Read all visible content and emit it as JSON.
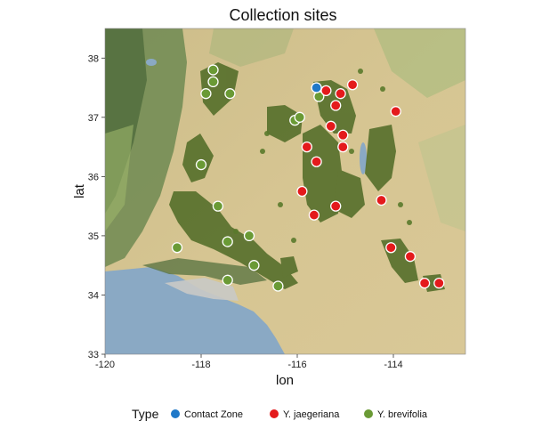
{
  "chart_data": {
    "type": "scatter",
    "title": "Collection sites",
    "xlabel": "lon",
    "ylabel": "lat",
    "xlim": [
      -120,
      -112.5
    ],
    "ylim": [
      33,
      38.5
    ],
    "x_ticks": [
      -120,
      -118,
      -116,
      -114
    ],
    "x_tick_labels": [
      "-120",
      "-118",
      "-116",
      "-114"
    ],
    "y_ticks": [
      33,
      34,
      35,
      36,
      37,
      38
    ],
    "y_tick_labels": [
      "33",
      "34",
      "35",
      "36",
      "37",
      "38"
    ],
    "grid": false,
    "background": "satellite terrain basemap",
    "legend": {
      "title": "Type",
      "placement": "bottom",
      "entries": [
        "Contact Zone",
        "Y. jaegeriana",
        "Y. brevifolia"
      ]
    },
    "series": [
      {
        "name": "Contact Zone",
        "color": "#1f78c8",
        "points": [
          [
            -115.6,
            37.5
          ]
        ]
      },
      {
        "name": "Y. jaegeriana",
        "color": "#e41a1c",
        "points": [
          [
            -115.4,
            37.45
          ],
          [
            -115.1,
            37.4
          ],
          [
            -114.85,
            37.55
          ],
          [
            -115.2,
            37.2
          ],
          [
            -113.95,
            37.1
          ],
          [
            -115.3,
            36.85
          ],
          [
            -115.05,
            36.7
          ],
          [
            -115.8,
            36.5
          ],
          [
            -115.05,
            36.5
          ],
          [
            -115.6,
            36.25
          ],
          [
            -115.9,
            35.75
          ],
          [
            -115.65,
            35.35
          ],
          [
            -115.2,
            35.5
          ],
          [
            -114.25,
            35.6
          ],
          [
            -114.05,
            34.8
          ],
          [
            -113.65,
            34.65
          ],
          [
            -113.35,
            34.2
          ],
          [
            -113.05,
            34.2
          ]
        ]
      },
      {
        "name": "Y. brevifolia",
        "color": "#6a9a35",
        "points": [
          [
            -117.75,
            37.8
          ],
          [
            -117.75,
            37.6
          ],
          [
            -117.9,
            37.4
          ],
          [
            -117.4,
            37.4
          ],
          [
            -116.05,
            36.95
          ],
          [
            -115.95,
            37.0
          ],
          [
            -118.0,
            36.2
          ],
          [
            -117.65,
            35.5
          ],
          [
            -117.45,
            34.9
          ],
          [
            -117.0,
            35.0
          ],
          [
            -118.5,
            34.8
          ],
          [
            -116.9,
            34.5
          ],
          [
            -117.45,
            34.25
          ],
          [
            -116.4,
            34.15
          ],
          [
            -115.55,
            37.35
          ]
        ]
      }
    ]
  }
}
